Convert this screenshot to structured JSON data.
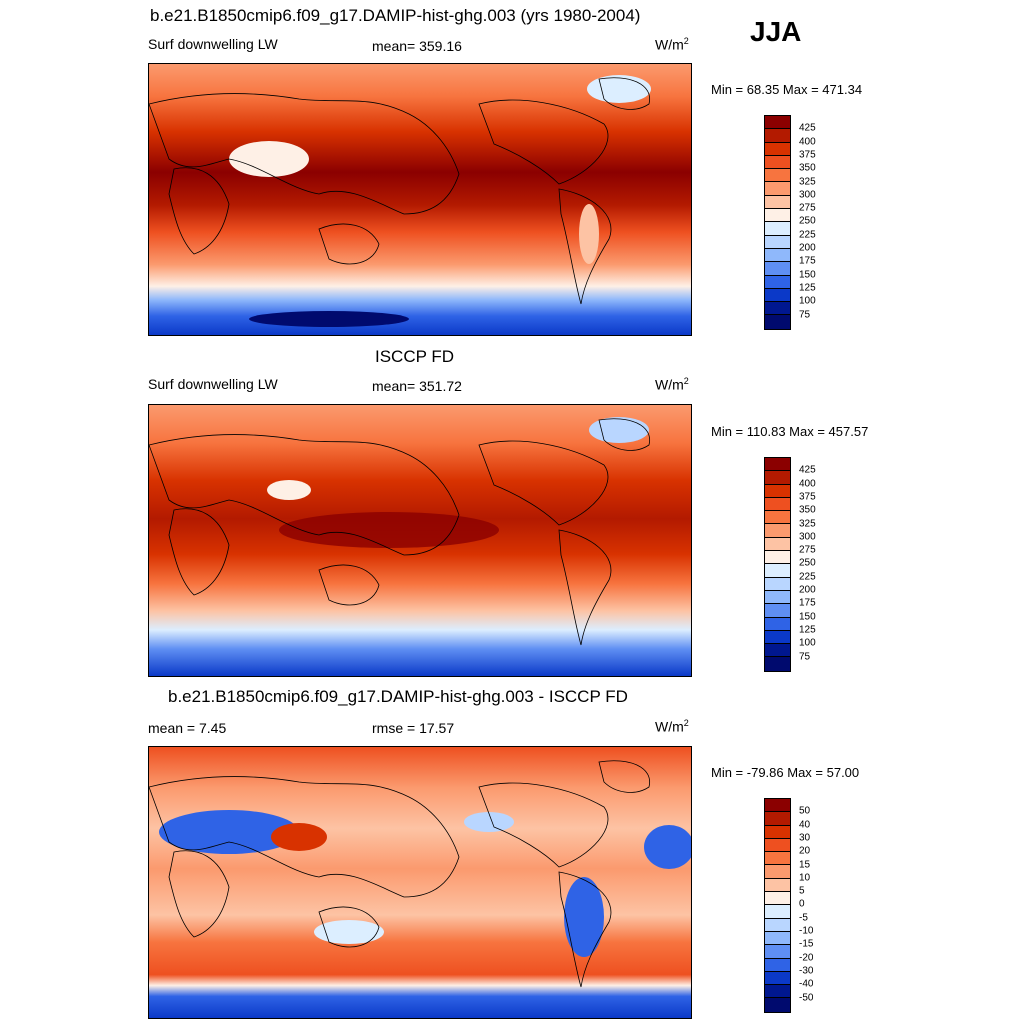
{
  "season": "JJA",
  "panels": [
    {
      "title": "b.e21.B1850cmip6.f09_g17.DAMIP-hist-ghg.003 (yrs 1980-2004)",
      "left_label": "Surf downwelling LW",
      "center_label": "mean= 359.16",
      "units": "W/m",
      "units_sup": "2",
      "minmax": "Min =  68.35 Max = 471.34",
      "colorbar": {
        "labels": [
          "425",
          "400",
          "375",
          "350",
          "325",
          "300",
          "275",
          "250",
          "225",
          "200",
          "175",
          "150",
          "125",
          "100",
          "75"
        ],
        "colors": [
          "#8b0000",
          "#b31a00",
          "#d83200",
          "#ee5020",
          "#f7743f",
          "#fb9a6e",
          "#fdc3a4",
          "#fef0e6",
          "#dceeff",
          "#b9d6ff",
          "#8fb8fb",
          "#5f8ff3",
          "#2f63e6",
          "#0b39c8",
          "#00178f",
          "#000a6e"
        ]
      }
    },
    {
      "title": "ISCCP FD",
      "left_label": "Surf downwelling LW",
      "center_label": "mean= 351.72",
      "units": "W/m",
      "units_sup": "2",
      "minmax": "Min = 110.83 Max = 457.57",
      "colorbar": {
        "labels": [
          "425",
          "400",
          "375",
          "350",
          "325",
          "300",
          "275",
          "250",
          "225",
          "200",
          "175",
          "150",
          "125",
          "100",
          "75"
        ],
        "colors": [
          "#8b0000",
          "#b31a00",
          "#d83200",
          "#ee5020",
          "#f7743f",
          "#fb9a6e",
          "#fdc3a4",
          "#fef0e6",
          "#dceeff",
          "#b9d6ff",
          "#8fb8fb",
          "#5f8ff3",
          "#2f63e6",
          "#0b39c8",
          "#00178f",
          "#000a6e"
        ]
      }
    },
    {
      "title": "b.e21.B1850cmip6.f09_g17.DAMIP-hist-ghg.003 - ISCCP FD",
      "left_label": "mean =   7.45",
      "center_label": "rmse =  17.57",
      "units": "W/m",
      "units_sup": "2",
      "minmax": "Min = -79.86 Max =  57.00",
      "colorbar": {
        "labels": [
          "50",
          "40",
          "30",
          "20",
          "15",
          "10",
          "5",
          "0",
          "-5",
          "-10",
          "-15",
          "-20",
          "-30",
          "-40",
          "-50"
        ],
        "colors": [
          "#8b0000",
          "#b31a00",
          "#d83200",
          "#ee5020",
          "#f7743f",
          "#fb9a6e",
          "#fdc3a4",
          "#fef0e6",
          "#dceeff",
          "#b9d6ff",
          "#8fb8fb",
          "#5f8ff3",
          "#2f63e6",
          "#0b39c8",
          "#00178f",
          "#000a6e"
        ]
      }
    }
  ]
}
